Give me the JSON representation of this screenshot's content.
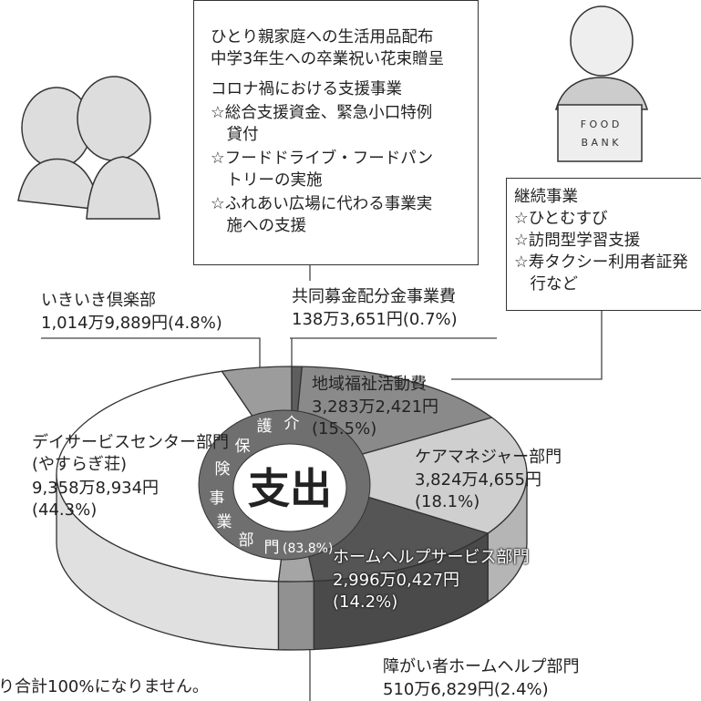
{
  "chart_data": {
    "type": "pie",
    "title": "支出",
    "group_label": [
      "介",
      "護",
      "保",
      "険",
      "事",
      "業",
      "部",
      "門"
    ],
    "group_share": "(83.8%)",
    "categories": [
      "いきいき倶楽部",
      "共同募金配分金事業費",
      "地域福祉活動費",
      "ケアマネジャー部門",
      "ホームヘルプサービス部門",
      "障がい者ホームヘルプ部門",
      "デイサービスセンター部門\n(やすらぎ荘)"
    ],
    "values": [
      4.8,
      0.7,
      15.5,
      18.1,
      14.2,
      2.4,
      44.3
    ],
    "value_labels": [
      "1,014万9,889円(4.8%)",
      "138万3,651円(0.7%)",
      "3,283万2,421円\n(15.5%)",
      "3,824万4,655円\n(18.1%)",
      "2,996万0,427円\n(14.2%)",
      "510万6,829円(2.4%)",
      "9,358万8,934円\n(44.3%)"
    ],
    "colors": [
      "#9c9c9c",
      "#5e5e5e",
      "#8a8a8a",
      "#cfcfcf",
      "#555555",
      "#a5a5a5",
      "#ffffff"
    ]
  },
  "notes": {
    "top_box": {
      "items": [
        "ひとり親家庭への生活用品配布",
        "中学3年生への卒業祝い花束贈呈"
      ],
      "heading": "コロナ禍における支援事業",
      "sub_items": [
        "☆総合支援資金、緊急小口特例貸付",
        "☆フードドライブ・フードパントリーの実施",
        "☆ふれあい広場に代わる事業実施への支援"
      ]
    },
    "right_box": {
      "heading": "継続事業",
      "sub_items": [
        "☆ひとむすび",
        "☆訪問型学習支援",
        "☆寿タクシー利用者証発行など"
      ]
    },
    "footnote": "り合計100%になりません。"
  }
}
